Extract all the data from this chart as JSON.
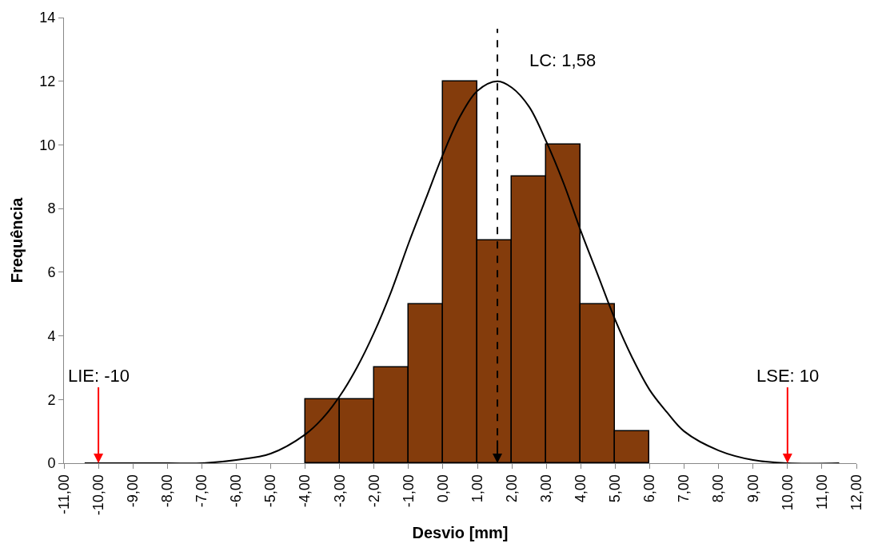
{
  "chart_data": {
    "type": "histogram",
    "xlabel": "Desvio [mm]",
    "ylabel": "Frequência",
    "bins": [
      -4,
      -3,
      -2,
      -1,
      0,
      1,
      2,
      3,
      4,
      5,
      6
    ],
    "values": [
      2,
      2,
      3,
      5,
      12,
      7,
      9,
      10,
      5,
      1
    ],
    "color": "#843c0c",
    "series": [
      {
        "type": "line",
        "color": "#000000",
        "x": [
          -10.4,
          -8,
          -7,
          -6,
          -5,
          -4,
          -3.5,
          -3,
          -2.5,
          -2,
          -1.5,
          -1,
          -0.5,
          0,
          0.5,
          1,
          1.58,
          2,
          2.5,
          3,
          3.5,
          4,
          4.5,
          5,
          5.5,
          6,
          6.5,
          7,
          8,
          9,
          10,
          11.5
        ],
        "values": [
          0,
          0,
          0,
          0.1,
          0.3,
          0.9,
          1.4,
          2.1,
          3.0,
          4.1,
          5.4,
          6.9,
          8.3,
          9.7,
          10.9,
          11.7,
          12,
          11.8,
          11.2,
          10.1,
          8.8,
          7.3,
          5.9,
          4.5,
          3.3,
          2.3,
          1.6,
          1.0,
          0.4,
          0.1,
          0,
          0
        ]
      }
    ],
    "ref_lines": [
      {
        "axis": "x",
        "value": 1.58,
        "label": "LC: 1,58",
        "color": "#000000",
        "line_style": "dashed"
      }
    ],
    "annotations": [
      {
        "text": "LIE: -10",
        "x": -10,
        "y": 0
      },
      {
        "text": "LSE: 10",
        "x": 10,
        "y": 0
      }
    ],
    "xlim": [
      -11,
      12
    ],
    "xticks": [
      {
        "value": -11,
        "label": "-11,00"
      },
      {
        "value": -10,
        "label": "-10,00"
      },
      {
        "value": -9,
        "label": "-9,00"
      },
      {
        "value": -8,
        "label": "-8,00"
      },
      {
        "value": -7,
        "label": "-7,00"
      },
      {
        "value": -6,
        "label": "-6,00"
      },
      {
        "value": -5,
        "label": "-5,00"
      },
      {
        "value": -4,
        "label": "-4,00"
      },
      {
        "value": -3,
        "label": "-3,00"
      },
      {
        "value": -2,
        "label": "-2,00"
      },
      {
        "value": -1,
        "label": "-1,00"
      },
      {
        "value": 0,
        "label": "0,00"
      },
      {
        "value": 1,
        "label": "1,00"
      },
      {
        "value": 2,
        "label": "2,00"
      },
      {
        "value": 3,
        "label": "3,00"
      },
      {
        "value": 4,
        "label": "4,00"
      },
      {
        "value": 5,
        "label": "5,00"
      },
      {
        "value": 6,
        "label": "6,00"
      },
      {
        "value": 7,
        "label": "7,00"
      },
      {
        "value": 8,
        "label": "8,00"
      },
      {
        "value": 9,
        "label": "9,00"
      },
      {
        "value": 10,
        "label": "10,00"
      },
      {
        "value": 11,
        "label": "11,00"
      },
      {
        "value": 12,
        "label": "12,00"
      }
    ],
    "ylim": [
      0,
      14
    ],
    "yticks": [
      0,
      2,
      4,
      6,
      8,
      10,
      12,
      14
    ]
  }
}
